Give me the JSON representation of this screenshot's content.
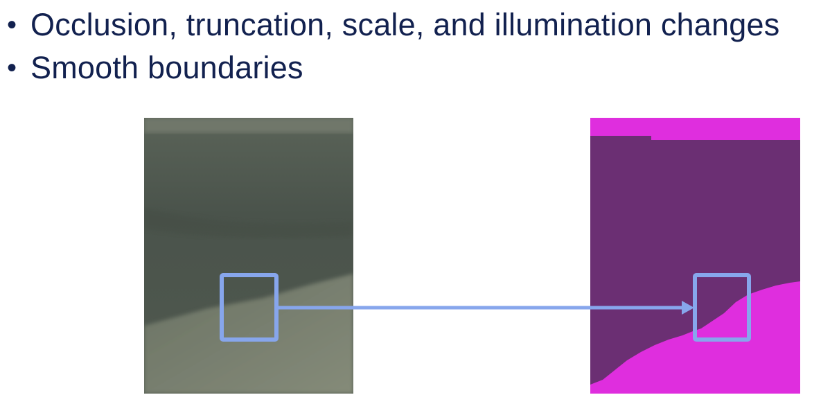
{
  "slide": {
    "bullets": [
      {
        "marker": "•",
        "text": "Occlusion, truncation, scale, and illumination changes"
      },
      {
        "marker": "•",
        "text": "Smooth boundaries"
      }
    ]
  },
  "figure": {
    "left_panel": {
      "kind": "photo-patch",
      "colors": {
        "dark": "#4a534b",
        "light": "#7e8575",
        "top_band": "#6f776a"
      }
    },
    "right_panel": {
      "kind": "segmentation-mask",
      "colors": {
        "purple": "#6b2f73",
        "magenta": "#df2ede"
      }
    },
    "highlight": {
      "color": "#87a6ec",
      "arrow": "left-box-to-right-box"
    }
  }
}
